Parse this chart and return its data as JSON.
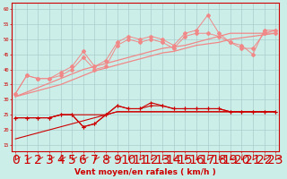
{
  "background_color": "#cceee8",
  "grid_color": "#aacccc",
  "xlabel": "Vent moyen/en rafales ( km/h )",
  "xlabel_color": "#cc0000",
  "xlabel_fontsize": 6.5,
  "tick_color": "#cc0000",
  "xticks": [
    0,
    1,
    2,
    3,
    4,
    5,
    6,
    7,
    8,
    9,
    10,
    11,
    12,
    13,
    14,
    15,
    16,
    17,
    18,
    19,
    20,
    21,
    22,
    23
  ],
  "ylim": [
    13,
    62
  ],
  "xlim": [
    -0.3,
    23.3
  ],
  "yticks": [
    15,
    20,
    25,
    30,
    35,
    40,
    45,
    50,
    55,
    60
  ],
  "line_color_light": "#f08888",
  "line_color_dark": "#cc0000",
  "x": [
    0,
    1,
    2,
    3,
    4,
    5,
    6,
    7,
    8,
    9,
    10,
    11,
    12,
    13,
    14,
    15,
    16,
    17,
    18,
    19,
    20,
    21,
    22,
    23
  ],
  "rafales_data1": [
    32,
    38,
    37,
    37,
    39,
    41,
    46,
    41,
    43,
    49,
    51,
    50,
    51,
    50,
    48,
    52,
    53,
    58,
    52,
    49,
    48,
    45,
    53,
    53
  ],
  "rafales_data2": [
    32,
    38,
    37,
    37,
    38,
    40,
    44,
    40,
    41,
    48,
    50,
    49,
    50,
    49,
    47,
    51,
    52,
    52,
    51,
    49,
    47,
    47,
    52,
    52
  ],
  "rafales_trend1": [
    31,
    32.5,
    34,
    35.5,
    37,
    38.5,
    40,
    41,
    42,
    43,
    44,
    45,
    46,
    47,
    47.5,
    48,
    49,
    50,
    51,
    52,
    52,
    52,
    52,
    53
  ],
  "rafales_trend2": [
    31,
    32,
    33,
    34,
    35,
    36.5,
    38,
    39.5,
    40.5,
    41.5,
    42.5,
    43.5,
    44.5,
    45.5,
    46,
    47,
    48,
    48.5,
    49,
    50,
    50.5,
    51,
    51.5,
    52
  ],
  "moyen_data1": [
    24,
    24,
    24,
    24,
    25,
    25,
    21,
    22,
    25,
    28,
    27,
    27,
    29,
    28,
    27,
    27,
    27,
    27,
    27,
    26,
    26,
    26,
    26,
    26
  ],
  "moyen_data2": [
    24,
    24,
    24,
    24,
    25,
    25,
    21,
    22,
    25,
    28,
    27,
    27,
    28,
    28,
    27,
    27,
    27,
    27,
    27,
    26,
    26,
    26,
    26,
    26
  ],
  "moyen_trend1": [
    24,
    24,
    24,
    24,
    25,
    25,
    25,
    25,
    25,
    26,
    26,
    26,
    26,
    26,
    26,
    26,
    26,
    26,
    26,
    26,
    26,
    26,
    26,
    26
  ],
  "moyen_trend2": [
    17,
    18,
    19,
    20,
    21,
    22,
    23,
    24,
    25,
    26,
    26,
    26,
    26,
    26,
    26,
    26,
    26,
    26,
    26,
    26,
    26,
    26,
    26,
    26
  ]
}
